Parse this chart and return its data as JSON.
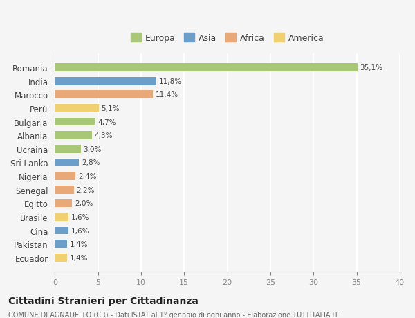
{
  "countries": [
    "Romania",
    "India",
    "Marocco",
    "Perù",
    "Bulgaria",
    "Albania",
    "Ucraina",
    "Sri Lanka",
    "Nigeria",
    "Senegal",
    "Egitto",
    "Brasile",
    "Cina",
    "Pakistan",
    "Ecuador"
  ],
  "values": [
    35.1,
    11.8,
    11.4,
    5.1,
    4.7,
    4.3,
    3.0,
    2.8,
    2.4,
    2.2,
    2.0,
    1.6,
    1.6,
    1.4,
    1.4
  ],
  "labels": [
    "35,1%",
    "11,8%",
    "11,4%",
    "5,1%",
    "4,7%",
    "4,3%",
    "3,0%",
    "2,8%",
    "2,4%",
    "2,2%",
    "2,0%",
    "1,6%",
    "1,6%",
    "1,4%",
    "1,4%"
  ],
  "continents": [
    "Europa",
    "Asia",
    "Africa",
    "America",
    "Europa",
    "Europa",
    "Europa",
    "Asia",
    "Africa",
    "Africa",
    "Africa",
    "America",
    "Asia",
    "Asia",
    "America"
  ],
  "continent_colors": {
    "Europa": "#a8c878",
    "Asia": "#6b9ec8",
    "Africa": "#e8a878",
    "America": "#f0d070"
  },
  "legend_order": [
    "Europa",
    "Asia",
    "Africa",
    "America"
  ],
  "xlim": [
    0,
    40
  ],
  "xticks": [
    0,
    5,
    10,
    15,
    20,
    25,
    30,
    35,
    40
  ],
  "title": "Cittadini Stranieri per Cittadinanza",
  "subtitle": "COMUNE DI AGNADELLO (CR) - Dati ISTAT al 1° gennaio di ogni anno - Elaborazione TUTTITALIA.IT",
  "background_color": "#f5f5f5",
  "grid_color": "#ffffff",
  "bar_height": 0.6
}
